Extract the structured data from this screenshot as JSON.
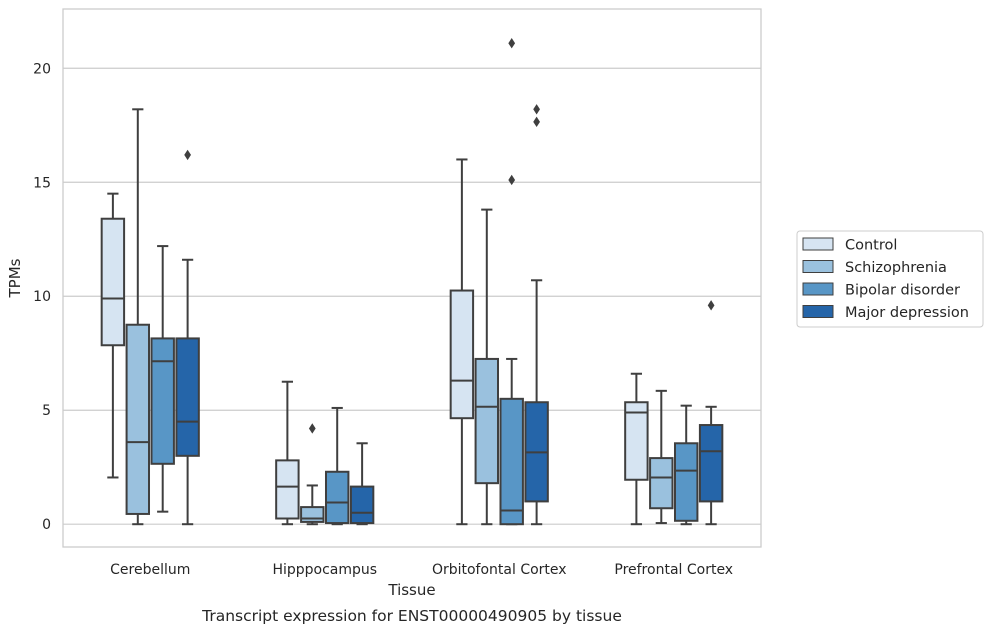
{
  "chart_data": {
    "type": "boxplot",
    "title": "",
    "caption": "Transcript expression for ENST00000490905 by tissue",
    "xlabel": "Tissue",
    "ylabel": "TPMs",
    "ylim": [
      -1,
      22.6
    ],
    "yticks": [
      0,
      5,
      10,
      15,
      20
    ],
    "grid": "horizontal",
    "legend_position": "right",
    "categories": [
      "Cerebellum",
      "Hipppocampus",
      "Orbitofontal Cortex",
      "Prefrontal Cortex"
    ],
    "series": [
      {
        "name": "Control",
        "color": "#d6e4f2",
        "boxes": [
          {
            "whisker_low": 2.05,
            "q1": 7.85,
            "median": 9.9,
            "q3": 13.4,
            "whisker_high": 14.5,
            "outliers": []
          },
          {
            "whisker_low": 0.0,
            "q1": 0.25,
            "median": 1.65,
            "q3": 2.8,
            "whisker_high": 6.25,
            "outliers": []
          },
          {
            "whisker_low": 0.0,
            "q1": 4.65,
            "median": 6.3,
            "q3": 10.25,
            "whisker_high": 16.0,
            "outliers": []
          },
          {
            "whisker_low": 0.0,
            "q1": 1.95,
            "median": 4.9,
            "q3": 5.35,
            "whisker_high": 6.6,
            "outliers": []
          }
        ]
      },
      {
        "name": "Schizophrenia",
        "color": "#9ac1de",
        "boxes": [
          {
            "whisker_low": 0.0,
            "q1": 0.45,
            "median": 3.6,
            "q3": 8.75,
            "whisker_high": 18.2,
            "outliers": []
          },
          {
            "whisker_low": 0.0,
            "q1": 0.1,
            "median": 0.25,
            "q3": 0.75,
            "whisker_high": 1.7,
            "outliers": [
              4.2
            ]
          },
          {
            "whisker_low": 0.0,
            "q1": 1.8,
            "median": 5.15,
            "q3": 7.25,
            "whisker_high": 13.8,
            "outliers": []
          },
          {
            "whisker_low": 0.05,
            "q1": 0.7,
            "median": 2.05,
            "q3": 2.9,
            "whisker_high": 5.85,
            "outliers": []
          }
        ]
      },
      {
        "name": "Bipolar disorder",
        "color": "#5896c6",
        "boxes": [
          {
            "whisker_low": 0.55,
            "q1": 2.65,
            "median": 7.15,
            "q3": 8.15,
            "whisker_high": 12.2,
            "outliers": []
          },
          {
            "whisker_low": 0.0,
            "q1": 0.05,
            "median": 0.95,
            "q3": 2.3,
            "whisker_high": 5.1,
            "outliers": []
          },
          {
            "whisker_low": 0.0,
            "q1": 0.0,
            "median": 0.6,
            "q3": 5.5,
            "whisker_high": 7.25,
            "outliers": [
              15.1,
              21.1
            ]
          },
          {
            "whisker_low": 0.0,
            "q1": 0.15,
            "median": 2.35,
            "q3": 3.55,
            "whisker_high": 5.2,
            "outliers": []
          }
        ]
      },
      {
        "name": "Major depression",
        "color": "#2565a9",
        "boxes": [
          {
            "whisker_low": 0.0,
            "q1": 3.0,
            "median": 4.5,
            "q3": 8.15,
            "whisker_high": 11.6,
            "outliers": [
              16.2
            ]
          },
          {
            "whisker_low": 0.0,
            "q1": 0.05,
            "median": 0.5,
            "q3": 1.65,
            "whisker_high": 3.55,
            "outliers": []
          },
          {
            "whisker_low": 0.0,
            "q1": 1.0,
            "median": 3.15,
            "q3": 5.35,
            "whisker_high": 10.7,
            "outliers": [
              17.65,
              18.2
            ]
          },
          {
            "whisker_low": 0.0,
            "q1": 1.0,
            "median": 3.2,
            "q3": 4.35,
            "whisker_high": 5.15,
            "outliers": [
              9.6
            ]
          }
        ]
      }
    ]
  }
}
